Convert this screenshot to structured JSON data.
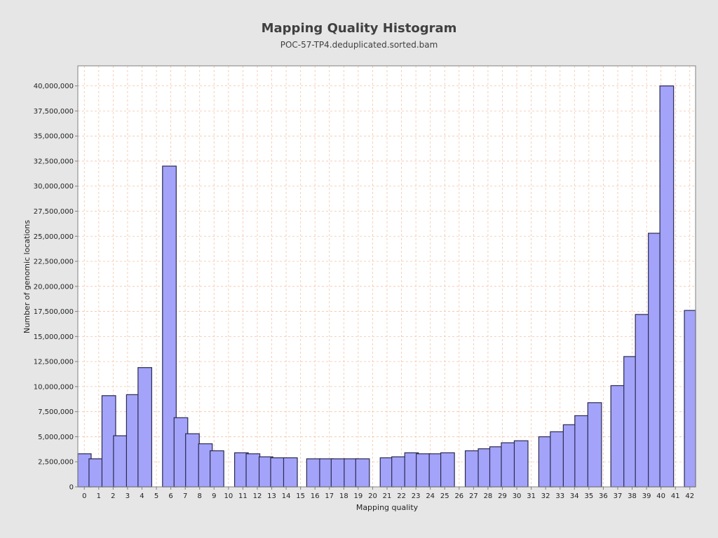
{
  "chart_data": {
    "type": "bar",
    "title": "Mapping Quality Histogram",
    "subtitle": "POC-57-TP4.deduplicated.sorted.bam",
    "xlabel": "Mapping quality",
    "ylabel": "Number of genomic locations",
    "x_ticks": [
      0,
      1,
      2,
      3,
      4,
      5,
      6,
      7,
      8,
      9,
      10,
      11,
      12,
      13,
      14,
      15,
      16,
      17,
      18,
      19,
      20,
      21,
      22,
      23,
      24,
      25,
      26,
      27,
      28,
      29,
      30,
      31,
      32,
      33,
      34,
      35,
      36,
      37,
      38,
      39,
      40,
      41,
      42
    ],
    "x_range": [
      -0.45,
      42.4
    ],
    "ylim": [
      0,
      42000000
    ],
    "y_ticks": [
      0,
      2500000,
      5000000,
      7500000,
      10000000,
      12500000,
      15000000,
      17500000,
      20000000,
      22500000,
      25000000,
      27500000,
      30000000,
      32500000,
      35000000,
      37500000,
      40000000
    ],
    "y_tick_labels": [
      "0",
      "2,500,000",
      "5,000,000",
      "7,500,000",
      "10,000,000",
      "12,500,000",
      "15,000,000",
      "17,500,000",
      "20,000,000",
      "22,500,000",
      "25,000,000",
      "27,500,000",
      "30,000,000",
      "32,500,000",
      "35,000,000",
      "37,500,000",
      "40,000,000"
    ],
    "grid": true,
    "bars": [
      {
        "x": 0.0,
        "value": 3300000
      },
      {
        "x": 0.8,
        "value": 2800000
      },
      {
        "x": 1.7,
        "value": 9100000
      },
      {
        "x": 2.5,
        "value": 5100000
      },
      {
        "x": 3.4,
        "value": 9200000
      },
      {
        "x": 4.2,
        "value": 11900000
      },
      {
        "x": 5.9,
        "value": 32000000
      },
      {
        "x": 6.7,
        "value": 6900000
      },
      {
        "x": 7.5,
        "value": 5300000
      },
      {
        "x": 8.4,
        "value": 4300000
      },
      {
        "x": 9.2,
        "value": 3600000
      },
      {
        "x": 10.9,
        "value": 3400000
      },
      {
        "x": 11.7,
        "value": 3300000
      },
      {
        "x": 12.6,
        "value": 3000000
      },
      {
        "x": 13.4,
        "value": 2900000
      },
      {
        "x": 14.3,
        "value": 2900000
      },
      {
        "x": 15.9,
        "value": 2800000
      },
      {
        "x": 16.8,
        "value": 2800000
      },
      {
        "x": 17.6,
        "value": 2800000
      },
      {
        "x": 18.5,
        "value": 2800000
      },
      {
        "x": 19.3,
        "value": 2800000
      },
      {
        "x": 21.0,
        "value": 2900000
      },
      {
        "x": 21.8,
        "value": 3000000
      },
      {
        "x": 22.7,
        "value": 3400000
      },
      {
        "x": 23.5,
        "value": 3300000
      },
      {
        "x": 24.4,
        "value": 3300000
      },
      {
        "x": 25.2,
        "value": 3400000
      },
      {
        "x": 26.9,
        "value": 3600000
      },
      {
        "x": 27.8,
        "value": 3800000
      },
      {
        "x": 28.6,
        "value": 4000000
      },
      {
        "x": 29.4,
        "value": 4400000
      },
      {
        "x": 30.3,
        "value": 4600000
      },
      {
        "x": 32.0,
        "value": 5000000
      },
      {
        "x": 32.8,
        "value": 5500000
      },
      {
        "x": 33.7,
        "value": 6200000
      },
      {
        "x": 34.5,
        "value": 7100000
      },
      {
        "x": 35.4,
        "value": 8400000
      },
      {
        "x": 37.0,
        "value": 10100000
      },
      {
        "x": 37.9,
        "value": 13000000
      },
      {
        "x": 38.7,
        "value": 17200000
      },
      {
        "x": 39.6,
        "value": 25300000
      },
      {
        "x": 40.4,
        "value": 40000000
      },
      {
        "x": 42.1,
        "value": 17600000
      }
    ],
    "colors": {
      "bar_fill": "#a3a3fa",
      "bar_stroke": "#2a2a4e",
      "grid": "#f2c4a8",
      "plot_bg": "#ffffff",
      "axis": "#808080"
    }
  }
}
